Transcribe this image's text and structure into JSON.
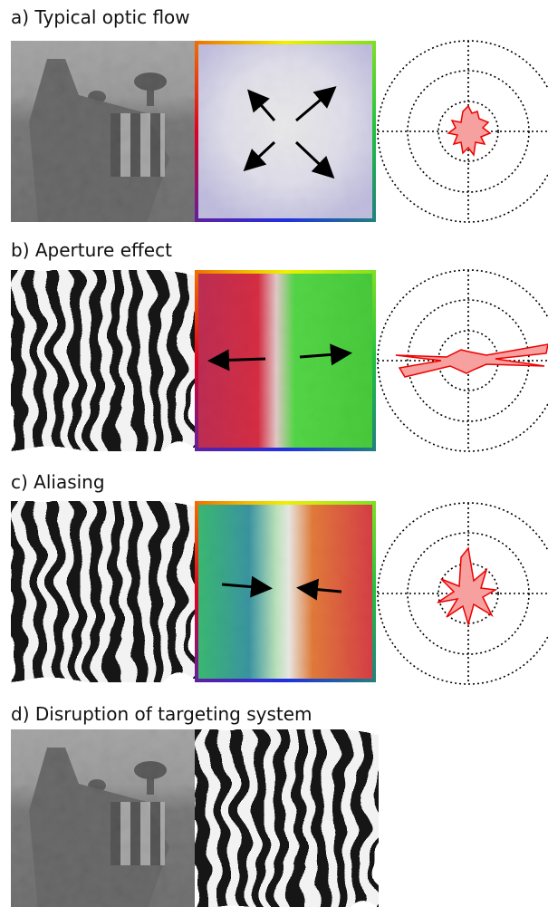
{
  "panels": [
    {
      "label": "a) Typical optic flow"
    },
    {
      "label": "b) Aperture effect"
    },
    {
      "label": "c) Aliasing"
    },
    {
      "label": "d) Disruption of targeting system"
    }
  ]
}
